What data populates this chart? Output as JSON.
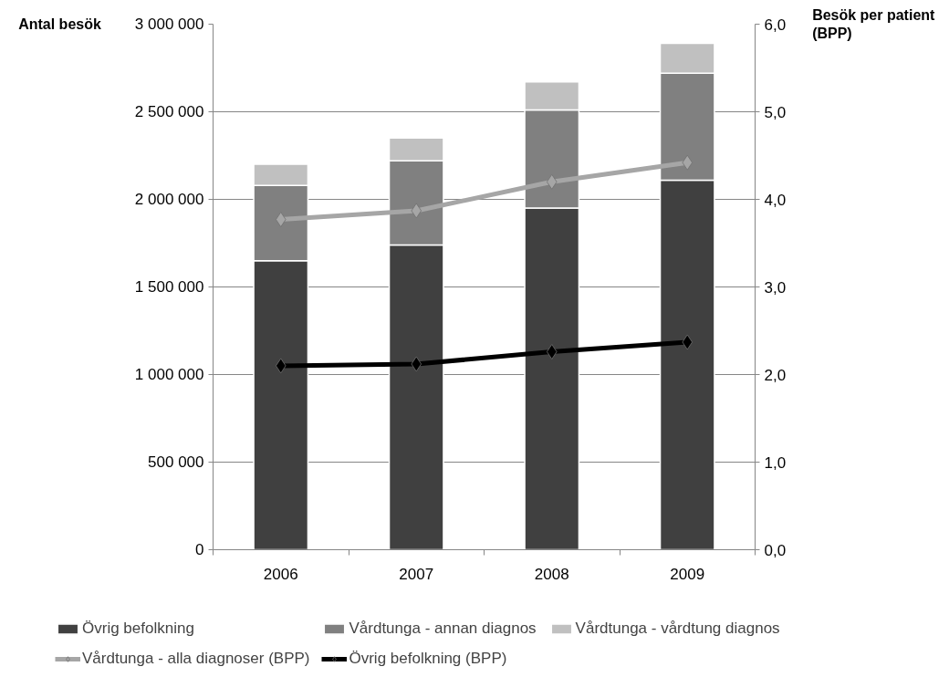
{
  "chart_data": {
    "type": "bar",
    "stacked": true,
    "categories": [
      "2006",
      "2007",
      "2008",
      "2009"
    ],
    "ylabel": "Antal besök",
    "y2label": "Besök per patient (BPP)",
    "ylim": [
      0,
      3000000
    ],
    "yticks": [
      {
        "value": 0,
        "label": "0"
      },
      {
        "value": 500000,
        "label": "500 000"
      },
      {
        "value": 1000000,
        "label": "1 000 000"
      },
      {
        "value": 1500000,
        "label": "1 500 000"
      },
      {
        "value": 2000000,
        "label": "2 000 000"
      },
      {
        "value": 2500000,
        "label": "2 500 000"
      },
      {
        "value": 3000000,
        "label": "3 000 000"
      }
    ],
    "y2lim": [
      0,
      6
    ],
    "y2ticks": [
      {
        "value": 0,
        "label": "0,0"
      },
      {
        "value": 1,
        "label": "1,0"
      },
      {
        "value": 2,
        "label": "2,0"
      },
      {
        "value": 3,
        "label": "3,0"
      },
      {
        "value": 4,
        "label": "4,0"
      },
      {
        "value": 5,
        "label": "5,0"
      },
      {
        "value": 6,
        "label": "6,0"
      }
    ],
    "grid": "y",
    "legend": "bottom",
    "marker": "diamond",
    "series": [
      {
        "name": "Övrig befolkning",
        "color": "#404040",
        "values": [
          1650000,
          1740000,
          1950000,
          2110000
        ]
      },
      {
        "name": "Vårdtunga - annan diagnos",
        "color": "#808080",
        "values": [
          430000,
          480000,
          560000,
          610000
        ]
      },
      {
        "name": "Vårdtunga - vårdtung diagnos",
        "color": "#c0c0c0",
        "values": [
          120000,
          130000,
          160000,
          170000
        ]
      },
      {
        "name": "Vårdtunga - alla diagnoser (BPP)",
        "type": "line",
        "axis": "y2",
        "color": "#a6a6a6",
        "values": [
          3.77,
          3.87,
          4.2,
          4.42
        ]
      },
      {
        "name": "Övrig befolkning (BPP)",
        "type": "line",
        "axis": "y2",
        "color": "#000000",
        "values": [
          2.1,
          2.12,
          2.26,
          2.37
        ]
      }
    ]
  }
}
